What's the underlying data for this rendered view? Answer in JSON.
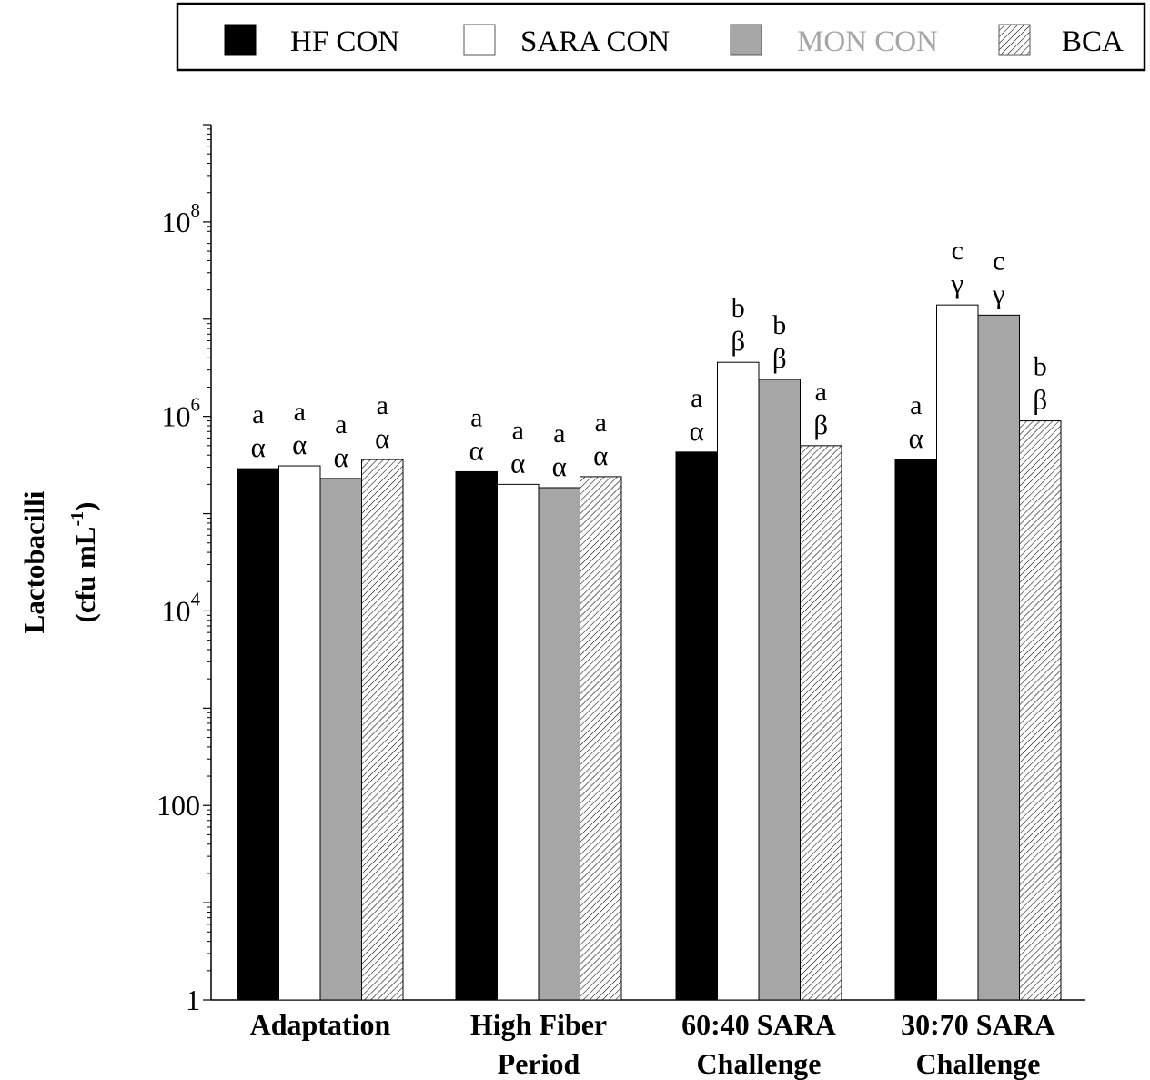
{
  "legend": {
    "items": [
      {
        "label": "HF CON",
        "fill": "solid",
        "color": "#000000",
        "text_color": "#000000"
      },
      {
        "label": "SARA CON",
        "fill": "solid",
        "color": "#ffffff",
        "text_color": "#000000"
      },
      {
        "label": "MON CON",
        "fill": "solid",
        "color": "#a6a6a6",
        "text_color": "#a6a6a6"
      },
      {
        "label": "BCA",
        "fill": "hatch",
        "color": "#ffffff",
        "text_color": "#000000"
      }
    ],
    "placement": "top-right"
  },
  "chart_data": {
    "type": "bar",
    "title": "",
    "ylabel_line1": "Lactobacilli",
    "ylabel_line2_base": "(cfu mL",
    "ylabel_line2_sup": "-1",
    "ylabel_line2_end": ")",
    "yscale": "log",
    "ylim": [
      1,
      1000000000
    ],
    "yticks": [
      {
        "value": 1,
        "base": "1",
        "sup": ""
      },
      {
        "value": 100,
        "base": "100",
        "sup": ""
      },
      {
        "value": 10000,
        "base": "10",
        "sup": "4"
      },
      {
        "value": 1000000,
        "base": "10",
        "sup": "6"
      },
      {
        "value": 100000000,
        "base": "10",
        "sup": "8"
      }
    ],
    "grid": false,
    "categories": [
      [
        "Adaptation"
      ],
      [
        "High Fiber",
        "Period"
      ],
      [
        "60:40 SARA",
        "Challenge"
      ],
      [
        "30:70 SARA",
        "Challenge"
      ]
    ],
    "series": [
      {
        "name": "HF CON",
        "values": [
          290000,
          270000,
          430000,
          360000
        ],
        "letters": [
          "a",
          "a",
          "a",
          "a"
        ],
        "greek": [
          "α",
          "α",
          "α",
          "α"
        ]
      },
      {
        "name": "SARA CON",
        "values": [
          310000,
          200000,
          3600000,
          14000000
        ],
        "letters": [
          "a",
          "a",
          "b",
          "c"
        ],
        "greek": [
          "α",
          "α",
          "β",
          "γ"
        ]
      },
      {
        "name": "MON CON",
        "values": [
          230000,
          185000,
          2400000,
          11000000
        ],
        "letters": [
          "a",
          "a",
          "b",
          "c"
        ],
        "greek": [
          "α",
          "α",
          "β",
          "γ"
        ]
      },
      {
        "name": "BCA",
        "values": [
          360000,
          240000,
          500000,
          900000
        ],
        "letters": [
          "a",
          "a",
          "a",
          "b"
        ],
        "greek": [
          "α",
          "α",
          "β",
          "β"
        ]
      }
    ]
  }
}
